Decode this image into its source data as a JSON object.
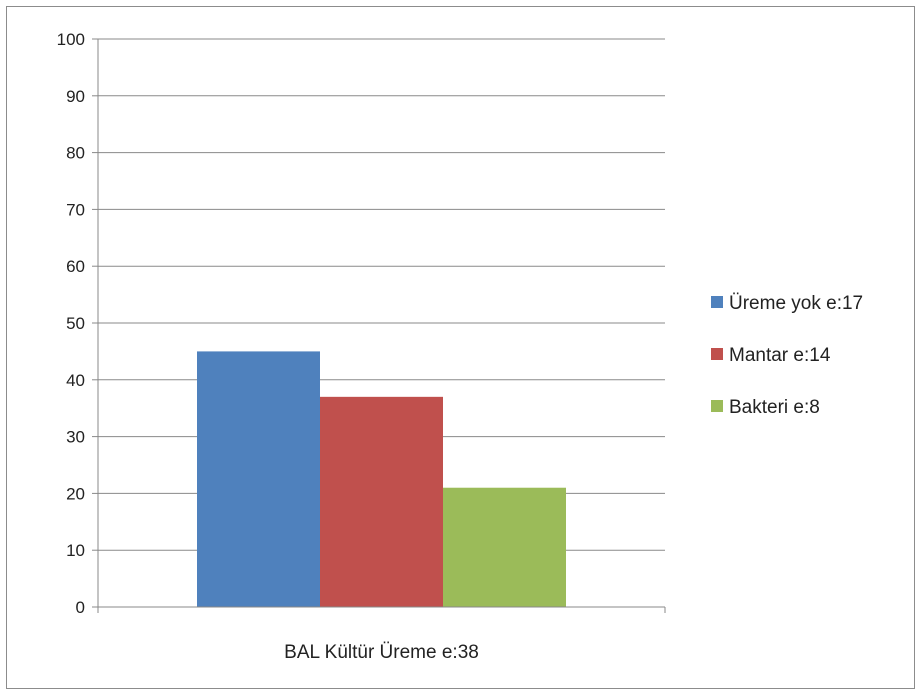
{
  "chart_data": {
    "type": "bar",
    "categories": [
      "BAL Kültür Üreme  e:38"
    ],
    "series": [
      {
        "name": "Üreme yok  e:17",
        "values": [
          45
        ],
        "color": "#4f81bd"
      },
      {
        "name": "Mantar  e:14",
        "values": [
          37
        ],
        "color": "#c0504d"
      },
      {
        "name": "Bakteri  e:8",
        "values": [
          21
        ],
        "color": "#9bbb59"
      }
    ],
    "ylim": [
      0,
      100
    ],
    "yticks": [
      0,
      10,
      20,
      30,
      40,
      50,
      60,
      70,
      80,
      90,
      100
    ],
    "grid": true,
    "legend_position": "right"
  }
}
